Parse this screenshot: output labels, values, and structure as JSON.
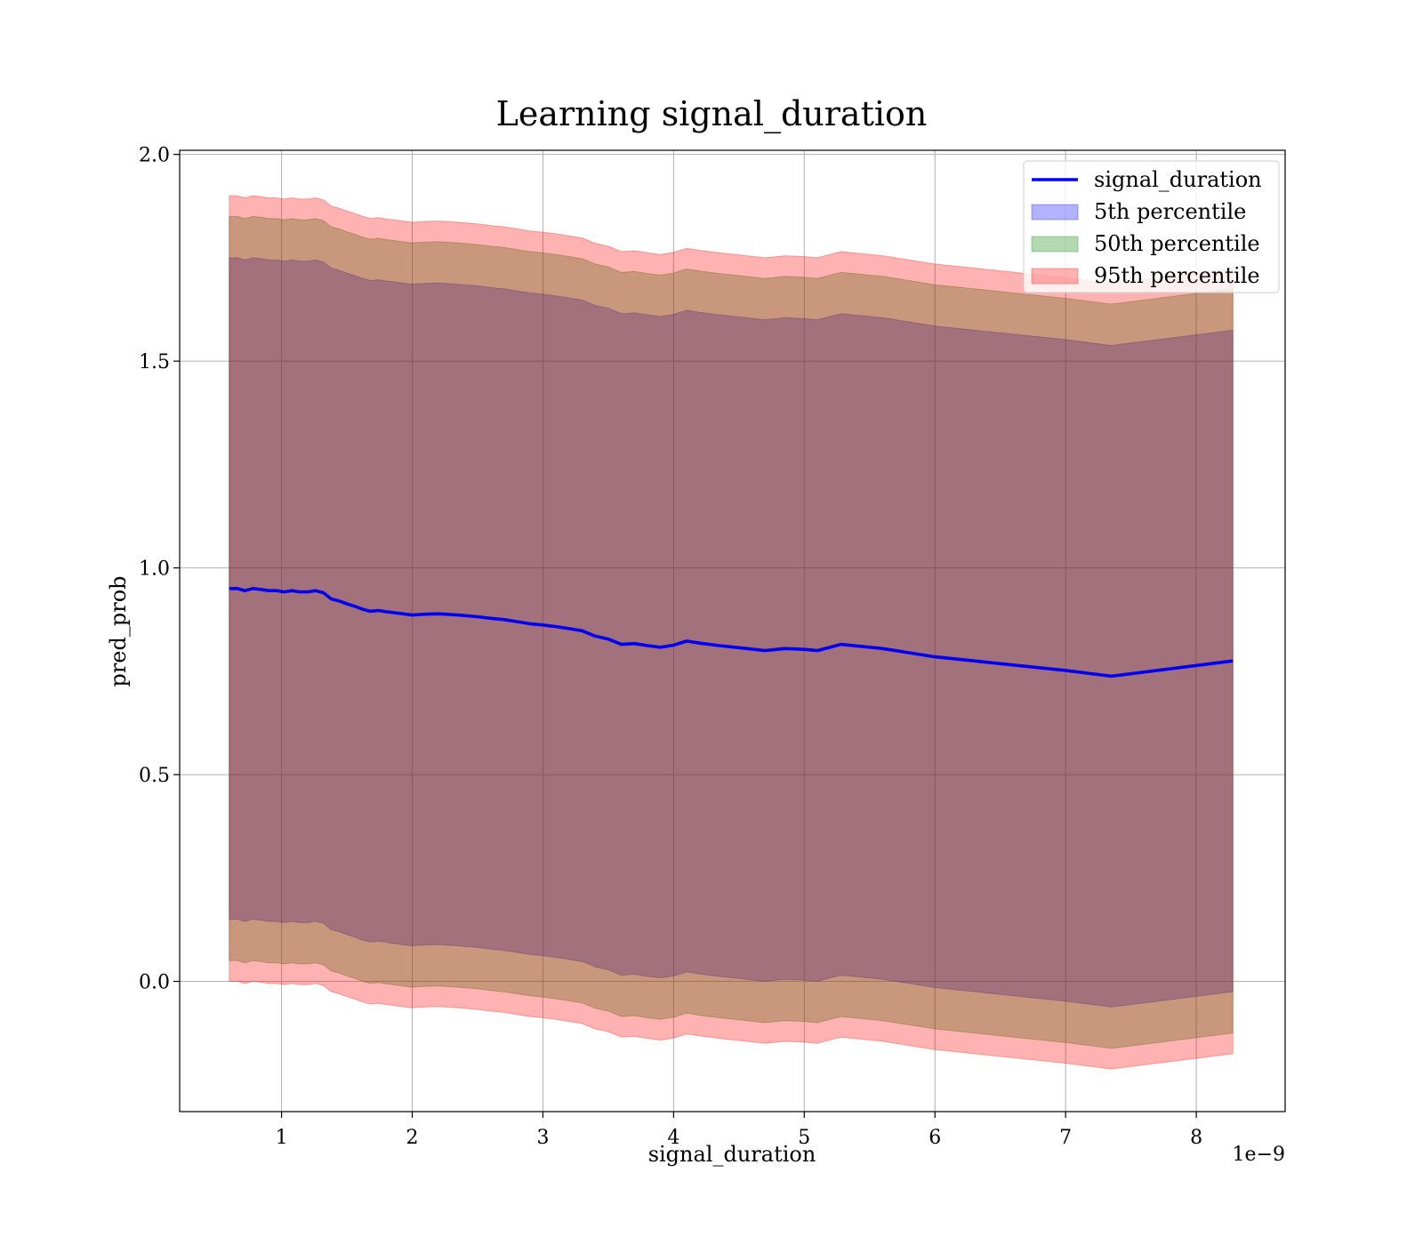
{
  "chart_data": {
    "type": "area",
    "title": "Learning signal_duration",
    "xlabel": "signal_duration",
    "ylabel": "pred_prob",
    "x_offset_label": "1e−9",
    "xlim": [
      0.22,
      8.68
    ],
    "ylim": [
      -0.315,
      2.01
    ],
    "x_ticks": [
      1,
      2,
      3,
      4,
      5,
      6,
      7,
      8
    ],
    "x_tick_labels": [
      "1",
      "2",
      "3",
      "4",
      "5",
      "6",
      "7",
      "8"
    ],
    "y_ticks": [
      0.0,
      0.5,
      1.0,
      1.5,
      2.0
    ],
    "y_tick_labels": [
      "0.0",
      "0.5",
      "1.0",
      "1.5",
      "2.0"
    ],
    "grid": true,
    "legend_position": "top-right",
    "x": [
      0.6,
      0.66,
      0.72,
      0.78,
      0.84,
      0.9,
      0.96,
      1.02,
      1.08,
      1.14,
      1.2,
      1.26,
      1.32,
      1.38,
      1.44,
      1.5,
      1.56,
      1.62,
      1.68,
      1.74,
      1.8,
      1.9,
      2.0,
      2.1,
      2.2,
      2.35,
      2.5,
      2.6,
      2.7,
      2.8,
      2.9,
      3.0,
      3.1,
      3.2,
      3.3,
      3.4,
      3.5,
      3.6,
      3.7,
      3.8,
      3.9,
      4.0,
      4.1,
      4.2,
      4.35,
      4.5,
      4.7,
      4.85,
      5.0,
      5.1,
      5.28,
      5.6,
      6.0,
      7.0,
      7.35,
      8.28
    ],
    "series": [
      {
        "name": "signal_duration",
        "kind": "line",
        "color": "#0000ee",
        "values": [
          0.95,
          0.95,
          0.945,
          0.95,
          0.948,
          0.945,
          0.945,
          0.942,
          0.945,
          0.942,
          0.942,
          0.945,
          0.94,
          0.925,
          0.92,
          0.913,
          0.907,
          0.9,
          0.895,
          0.897,
          0.894,
          0.89,
          0.886,
          0.888,
          0.889,
          0.886,
          0.882,
          0.878,
          0.875,
          0.87,
          0.865,
          0.862,
          0.858,
          0.853,
          0.848,
          0.835,
          0.828,
          0.815,
          0.817,
          0.812,
          0.808,
          0.813,
          0.823,
          0.818,
          0.812,
          0.807,
          0.8,
          0.805,
          0.803,
          0.8,
          0.815,
          0.805,
          0.785,
          0.752,
          0.738,
          0.775
        ]
      },
      {
        "name": "5th percentile",
        "kind": "band",
        "color": "#0000ff",
        "half_width": 0.8
      },
      {
        "name": "50th percentile",
        "kind": "band",
        "color": "#008000",
        "half_width": 0.9
      },
      {
        "name": "95th percentile",
        "kind": "band",
        "color": "#ff0000",
        "half_width": 0.95
      }
    ]
  }
}
